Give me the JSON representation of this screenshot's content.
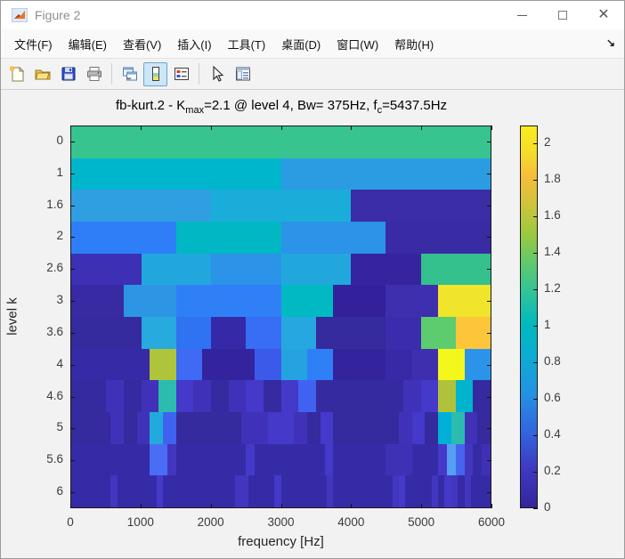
{
  "window": {
    "title": "Figure 2",
    "controls": {
      "minimize": "minimize",
      "maximize": "maximize",
      "close": "close"
    }
  },
  "menu": {
    "items": [
      "文件(F)",
      "编辑(E)",
      "查看(V)",
      "插入(I)",
      "工具(T)",
      "桌面(D)",
      "窗口(W)",
      "帮助(H)"
    ],
    "dock_arrow": "↘"
  },
  "toolbar": {
    "buttons": [
      {
        "name": "new-figure"
      },
      {
        "name": "open-file"
      },
      {
        "name": "save-figure"
      },
      {
        "name": "print-figure"
      },
      {
        "name": "link-plot"
      },
      {
        "name": "insert-colorbar",
        "active": true
      },
      {
        "name": "insert-legend"
      },
      {
        "name": "edit-plot"
      },
      {
        "name": "plot-browser"
      }
    ],
    "active_button": "insert-colorbar"
  },
  "chart_data": {
    "type": "heatmap",
    "title_plain": "fb-kurt.2 - Kmax=2.1 @ level 4, Bw= 375Hz, fc=5437.5Hz",
    "title_parts": [
      [
        "t",
        "fb-kurt.2 - K"
      ],
      [
        "sub",
        "max"
      ],
      [
        "t",
        "=2.1 @ level 4, Bw= 375Hz, f"
      ],
      [
        "sub",
        "c"
      ],
      [
        "t",
        "=5437.5Hz"
      ]
    ],
    "xlabel": "frequency [Hz]",
    "ylabel": "level k",
    "x_ticks": [
      "0",
      "1000",
      "2000",
      "3000",
      "4000",
      "5000",
      "6000"
    ],
    "x_range_hz": [
      0,
      6000
    ],
    "y_tick_labels": [
      "0",
      "1",
      "1.6",
      "2",
      "2.6",
      "3",
      "3.6",
      "4",
      "4.6",
      "5",
      "5.6",
      "6"
    ],
    "k_max": 2.1,
    "peak": {
      "level": 4,
      "bw_hz": 375,
      "fc_hz": 5437.5
    },
    "colorbar": {
      "min": 0,
      "max": 2.1,
      "ticks": [
        "0",
        "0.2",
        "0.4",
        "0.6",
        "0.8",
        "1",
        "1.2",
        "1.4",
        "1.6",
        "1.8",
        "2"
      ],
      "gradient_stops": [
        [
          0,
          "#33269c"
        ],
        [
          0.1,
          "#4038c0"
        ],
        [
          0.2,
          "#3166e0"
        ],
        [
          0.3,
          "#2492e2"
        ],
        [
          0.4,
          "#0cadd2"
        ],
        [
          0.48,
          "#00b9be"
        ],
        [
          0.56,
          "#2ec39a"
        ],
        [
          0.64,
          "#5fc96e"
        ],
        [
          0.72,
          "#9cc93f"
        ],
        [
          0.8,
          "#d3c33b"
        ],
        [
          0.87,
          "#f7bd3a"
        ],
        [
          0.93,
          "#f5dc2a"
        ],
        [
          1,
          "#f9ed20"
        ]
      ]
    },
    "rows": [
      {
        "label": "0",
        "n": 1,
        "base": "#37c48f",
        "cells": {}
      },
      {
        "label": "1",
        "n": 2,
        "base": "#00b6cc",
        "cells": {
          "1": "#2b9ce2"
        }
      },
      {
        "label": "1.6",
        "n": 3,
        "base": "#3a2da6",
        "cells": {
          "0": "#2f9fe2",
          "1": "#1badd9"
        }
      },
      {
        "label": "2",
        "n": 4,
        "base": "#392ba3",
        "cells": {
          "0": "#2e7ef7",
          "1": "#00b7c3",
          "2": "#2b93e8"
        }
      },
      {
        "label": "2.6",
        "n": 6,
        "base": "#35249e",
        "cells": {
          "0": "#3d30b5",
          "1": "#22a7dd",
          "2": "#2b93e8",
          "3": "#22a7dd",
          "5": "#34c18e"
        }
      },
      {
        "label": "3",
        "n": 8,
        "base": "#32219b",
        "cells": {
          "0": "#372aa3",
          "1": "#2d96e4",
          "2": "#2f80f7",
          "3": "#2f80f7",
          "4": "#00b9c2",
          "6": "#3d2fae",
          "7": "#f0e52a"
        }
      },
      {
        "label": "3.6",
        "n": 12,
        "base": "#352a9e",
        "cells": {
          "2": "#27aadd",
          "3": "#2f72f2",
          "4": "#3629a8",
          "5": "#386ef4",
          "6": "#27a7e0",
          "9": "#3b2cae",
          "10": "#5ccc6e",
          "11": "#fdc53a"
        }
      },
      {
        "label": "4",
        "n": 16,
        "base": "#33249e",
        "cells": {
          "0": "#372aa6",
          "1": "#372aa6",
          "2": "#372aa6",
          "3": "#aec43b",
          "4": "#3f6af3",
          "7": "#3c5ae9",
          "8": "#25a3e0",
          "9": "#2f80f7",
          "12": "#372aa6",
          "13": "#3d2fae",
          "14": "#f4f71b",
          "15": "#2b94ea"
        }
      },
      {
        "label": "4.6",
        "n": 24,
        "base": "#352aa0",
        "cells": {
          "2": "#4032b8",
          "4": "#4032b8",
          "5": "#2bbcaf",
          "6": "#4439c9",
          "7": "#4032b8",
          "9": "#4032b8",
          "10": "#4439c9",
          "12": "#4439c9",
          "13": "#3f63f0",
          "19": "#4032b8",
          "20": "#4439c9",
          "21": "#b0c23a",
          "22": "#00b4cd"
        }
      },
      {
        "label": "5",
        "n": 32,
        "base": "#352a9e",
        "cells": {
          "3": "#4032b8",
          "5": "#4032b8",
          "6": "#22aadd",
          "7": "#3f63f0",
          "13": "#4032b8",
          "14": "#4032b8",
          "15": "#4439c9",
          "16": "#4439c9",
          "17": "#4032b8",
          "19": "#4439c9",
          "25": "#4032b8",
          "26": "#4439c9",
          "28": "#00b0d8",
          "29": "#2bbcaf",
          "30": "#4032b8"
        }
      },
      {
        "label": "5.6",
        "n": 48,
        "base": "#362ba6",
        "cells": {
          "9": "#4a6df5",
          "10": "#4a6df5",
          "11": "#4136bd",
          "20": "#4439c9",
          "29": "#4439c9",
          "36": "#3e31b5",
          "37": "#3e31b5",
          "38": "#3e31b5",
          "42": "#4439c9",
          "43": "#55a0f0",
          "44": "#4565ee",
          "45": "#4136bd",
          "47": "#3e31b5"
        }
      },
      {
        "label": "6",
        "n": 64,
        "base": "#362ba6",
        "cells": {
          "6": "#4136bd",
          "13": "#4439c9",
          "25": "#4136bd",
          "26": "#4136bd",
          "31": "#4439c9",
          "39": "#4136bd",
          "49": "#4136bd",
          "50": "#4439c9",
          "55": "#4136bd",
          "57": "#4439c9",
          "58": "#4136bd",
          "60": "#4136bd"
        }
      }
    ],
    "color_value_map_approx": {
      "#37c48f": 1.25,
      "#00b6cc": 0.95,
      "#2b9ce2": 0.78,
      "#2f9fe2": 0.78,
      "#1badd9": 0.85,
      "#3a2da6": 0.15,
      "#2e7ef7": 0.62,
      "#00b7c3": 0.95,
      "#2b93e8": 0.72,
      "#392ba3": 0.13,
      "#3d30b5": 0.22,
      "#22a7dd": 0.82,
      "#35249e": 0.1,
      "#34c18e": 1.25,
      "#372aa3": 0.12,
      "#2d96e4": 0.74,
      "#2f80f7": 0.62,
      "#00b9c2": 0.97,
      "#32219b": 0.07,
      "#3d2fae": 0.2,
      "#f0e52a": 2.0,
      "#352a9e": 0.1,
      "#27aadd": 0.82,
      "#2f72f2": 0.58,
      "#3629a8": 0.13,
      "#386ef4": 0.58,
      "#27a7e0": 0.8,
      "#33249e": 0.08,
      "#3b2cae": 0.2,
      "#5ccc6e": 1.4,
      "#fdc53a": 1.8,
      "#372aa6": 0.12,
      "#aec43b": 1.55,
      "#3f6af3": 0.55,
      "#3c5ae9": 0.5,
      "#25a3e0": 0.8,
      "#f4f71b": 2.1,
      "#2b94ea": 0.72,
      "#352aa0": 0.1,
      "#4032b8": 0.25,
      "#2bbcaf": 1.05,
      "#4439c9": 0.3,
      "#3f63f0": 0.55,
      "#b0c23a": 1.55,
      "#00b4cd": 0.93,
      "#22aadd": 0.82,
      "#00b0d8": 0.88,
      "#362ba6": 0.12,
      "#4a6df5": 0.52,
      "#4136bd": 0.27,
      "#3e31b5": 0.22,
      "#55a0f0": 0.65,
      "#4565ee": 0.45
    },
    "colors": {
      "canvas_bg": "#f2f2f2",
      "axis": "#1a1a1a",
      "tick_text": "#3b3b3b"
    }
  }
}
